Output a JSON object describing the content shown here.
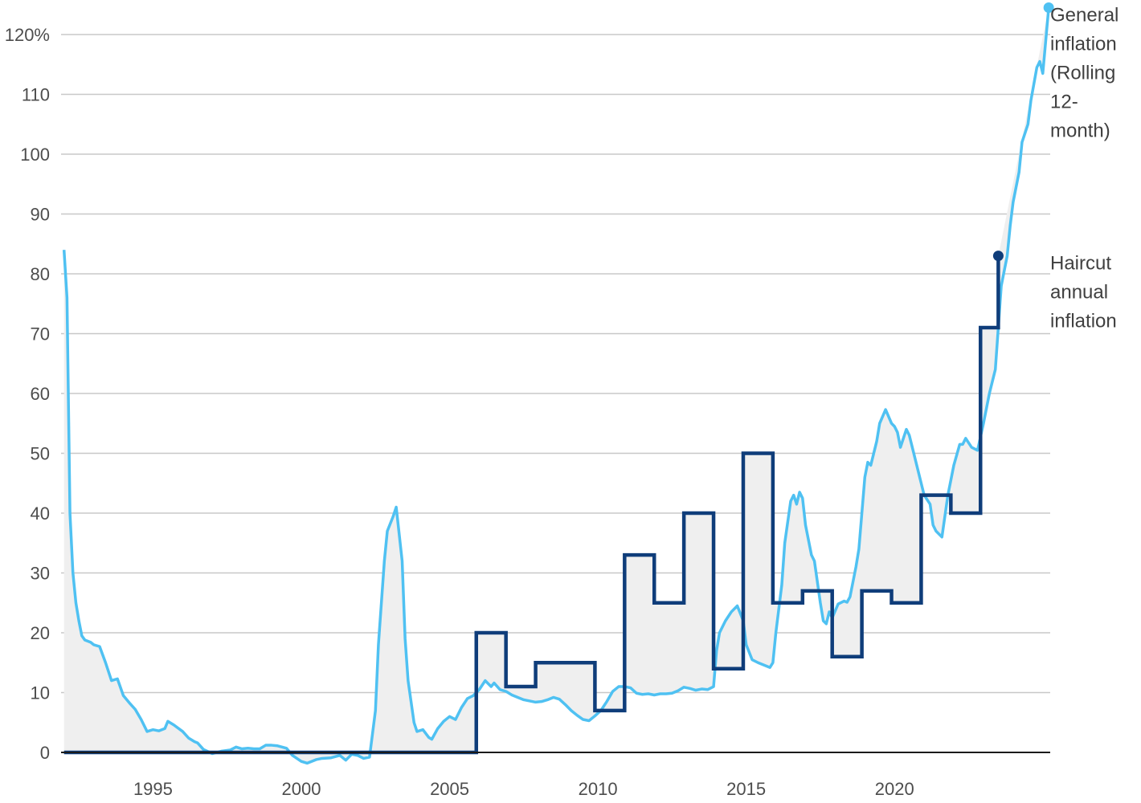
{
  "chart_data": {
    "type": "line",
    "title": "",
    "xlabel": "",
    "ylabel": "",
    "xlim": [
      1991.9,
      2023.8
    ],
    "ylim": [
      0,
      120
    ],
    "grid": true,
    "x_ticks": [
      {
        "value": 1995,
        "label": "1995"
      },
      {
        "value": 2000,
        "label": "2000"
      },
      {
        "value": 2005,
        "label": "2005"
      },
      {
        "value": 2010,
        "label": "2010"
      },
      {
        "value": 2015,
        "label": "2015"
      },
      {
        "value": 2020,
        "label": "2020"
      }
    ],
    "y_ticks": [
      {
        "value": 0,
        "label": "0"
      },
      {
        "value": 10,
        "label": "10"
      },
      {
        "value": 20,
        "label": "20"
      },
      {
        "value": 30,
        "label": "30"
      },
      {
        "value": 40,
        "label": "40"
      },
      {
        "value": 50,
        "label": "50"
      },
      {
        "value": 60,
        "label": "60"
      },
      {
        "value": 70,
        "label": "70"
      },
      {
        "value": 80,
        "label": "80"
      },
      {
        "value": 90,
        "label": "90"
      },
      {
        "value": 100,
        "label": "100"
      },
      {
        "value": 110,
        "label": "110"
      },
      {
        "value": 120,
        "label": "120%"
      }
    ],
    "fill_between_series": true,
    "series": [
      {
        "name": "General inflation (Rolling 12-month)",
        "label_lines": [
          "General",
          "inflation",
          "(Rolling",
          "12-",
          "month)"
        ],
        "color": "#4fc1f2",
        "line_style": "smooth",
        "end_marker": true,
        "points": [
          [
            1992.0,
            84
          ],
          [
            1992.1,
            76
          ],
          [
            1992.2,
            40
          ],
          [
            1992.3,
            30
          ],
          [
            1992.4,
            25
          ],
          [
            1992.5,
            22
          ],
          [
            1992.6,
            19.5
          ],
          [
            1992.7,
            18.8
          ],
          [
            1992.9,
            18.4
          ],
          [
            1993.0,
            18
          ],
          [
            1993.2,
            17.7
          ],
          [
            1993.4,
            15
          ],
          [
            1993.6,
            12
          ],
          [
            1993.8,
            12.3
          ],
          [
            1994.0,
            9.5
          ],
          [
            1994.2,
            8.3
          ],
          [
            1994.4,
            7.2
          ],
          [
            1994.6,
            5.5
          ],
          [
            1994.8,
            3.5
          ],
          [
            1995.0,
            3.8
          ],
          [
            1995.2,
            3.6
          ],
          [
            1995.4,
            4
          ],
          [
            1995.5,
            5.2
          ],
          [
            1995.7,
            4.6
          ],
          [
            1996.0,
            3.5
          ],
          [
            1996.2,
            2.4
          ],
          [
            1996.4,
            1.8
          ],
          [
            1996.5,
            1.6
          ],
          [
            1996.7,
            0.5
          ],
          [
            1997.0,
            -0.2
          ],
          [
            1997.3,
            0.2
          ],
          [
            1997.6,
            0.4
          ],
          [
            1997.8,
            0.9
          ],
          [
            1998.0,
            0.6
          ],
          [
            1998.2,
            0.7
          ],
          [
            1998.4,
            0.6
          ],
          [
            1998.6,
            0.6
          ],
          [
            1998.8,
            1.2
          ],
          [
            1999.0,
            1.2
          ],
          [
            1999.2,
            1.1
          ],
          [
            1999.5,
            0.7
          ],
          [
            1999.7,
            -0.5
          ],
          [
            2000.0,
            -1.5
          ],
          [
            2000.2,
            -1.8
          ],
          [
            2000.5,
            -1.2
          ],
          [
            2000.7,
            -1
          ],
          [
            2001.0,
            -0.9
          ],
          [
            2001.3,
            -0.5
          ],
          [
            2001.5,
            -1.3
          ],
          [
            2001.7,
            -0.3
          ],
          [
            2001.9,
            -0.5
          ],
          [
            2002.1,
            -1
          ],
          [
            2002.3,
            -0.8
          ],
          [
            2002.5,
            7
          ],
          [
            2002.6,
            18
          ],
          [
            2002.8,
            32
          ],
          [
            2002.9,
            37
          ],
          [
            2003.1,
            39.5
          ],
          [
            2003.2,
            41
          ],
          [
            2003.4,
            32
          ],
          [
            2003.5,
            19
          ],
          [
            2003.6,
            12
          ],
          [
            2003.8,
            5
          ],
          [
            2003.9,
            3.5
          ],
          [
            2004.1,
            3.8
          ],
          [
            2004.3,
            2.5
          ],
          [
            2004.4,
            2.2
          ],
          [
            2004.6,
            4
          ],
          [
            2004.8,
            5.2
          ],
          [
            2005.0,
            6
          ],
          [
            2005.2,
            5.5
          ],
          [
            2005.4,
            7.5
          ],
          [
            2005.6,
            9
          ],
          [
            2005.8,
            9.5
          ],
          [
            2006.0,
            10.5
          ],
          [
            2006.2,
            12
          ],
          [
            2006.4,
            11
          ],
          [
            2006.5,
            11.6
          ],
          [
            2006.7,
            10.5
          ],
          [
            2006.9,
            10.2
          ],
          [
            2007.1,
            9.6
          ],
          [
            2007.3,
            9.2
          ],
          [
            2007.5,
            8.8
          ],
          [
            2007.7,
            8.6
          ],
          [
            2007.9,
            8.4
          ],
          [
            2008.1,
            8.5
          ],
          [
            2008.3,
            8.8
          ],
          [
            2008.5,
            9.2
          ],
          [
            2008.7,
            8.9
          ],
          [
            2008.9,
            8
          ],
          [
            2009.1,
            7
          ],
          [
            2009.3,
            6.2
          ],
          [
            2009.5,
            5.5
          ],
          [
            2009.7,
            5.3
          ],
          [
            2009.9,
            6.1
          ],
          [
            2010.1,
            7
          ],
          [
            2010.3,
            8.5
          ],
          [
            2010.5,
            10.2
          ],
          [
            2010.7,
            11
          ],
          [
            2010.9,
            11
          ],
          [
            2011.1,
            10.8
          ],
          [
            2011.3,
            9.9
          ],
          [
            2011.5,
            9.7
          ],
          [
            2011.7,
            9.8
          ],
          [
            2011.9,
            9.6
          ],
          [
            2012.1,
            9.8
          ],
          [
            2012.3,
            9.8
          ],
          [
            2012.5,
            9.9
          ],
          [
            2012.7,
            10.3
          ],
          [
            2012.9,
            10.9
          ],
          [
            2013.1,
            10.7
          ],
          [
            2013.3,
            10.4
          ],
          [
            2013.5,
            10.6
          ],
          [
            2013.7,
            10.5
          ],
          [
            2013.9,
            11
          ],
          [
            2014.0,
            17
          ],
          [
            2014.1,
            20
          ],
          [
            2014.3,
            22
          ],
          [
            2014.5,
            23.5
          ],
          [
            2014.7,
            24.5
          ],
          [
            2014.9,
            22
          ],
          [
            2015.0,
            18
          ],
          [
            2015.2,
            15.5
          ],
          [
            2015.4,
            15
          ],
          [
            2015.6,
            14.6
          ],
          [
            2015.8,
            14.2
          ],
          [
            2015.9,
            15
          ],
          [
            2016.0,
            20
          ],
          [
            2016.2,
            28
          ],
          [
            2016.3,
            35
          ],
          [
            2016.5,
            42
          ],
          [
            2016.6,
            43
          ],
          [
            2016.7,
            41.5
          ],
          [
            2016.8,
            43.5
          ],
          [
            2016.9,
            42.5
          ],
          [
            2017.0,
            38
          ],
          [
            2017.2,
            33
          ],
          [
            2017.3,
            32
          ],
          [
            2017.5,
            25
          ],
          [
            2017.6,
            22
          ],
          [
            2017.7,
            21.5
          ],
          [
            2017.8,
            23.5
          ],
          [
            2017.9,
            22.5
          ],
          [
            2018.1,
            24.8
          ],
          [
            2018.3,
            25.3
          ],
          [
            2018.4,
            25.1
          ],
          [
            2018.5,
            26
          ],
          [
            2018.7,
            31
          ],
          [
            2018.8,
            34
          ],
          [
            2018.9,
            40
          ],
          [
            2019.0,
            46
          ],
          [
            2019.1,
            48.5
          ],
          [
            2019.2,
            48
          ],
          [
            2019.4,
            52
          ],
          [
            2019.5,
            55
          ],
          [
            2019.7,
            57.3
          ],
          [
            2019.9,
            55
          ],
          [
            2020.0,
            54.5
          ],
          [
            2020.1,
            53.5
          ],
          [
            2020.2,
            51
          ],
          [
            2020.4,
            54
          ],
          [
            2020.5,
            53
          ],
          [
            2020.6,
            51
          ],
          [
            2020.8,
            47
          ],
          [
            2020.9,
            45
          ],
          [
            2021.0,
            43
          ],
          [
            2021.2,
            41.5
          ],
          [
            2021.3,
            38
          ],
          [
            2021.4,
            37
          ],
          [
            2021.6,
            36
          ],
          [
            2021.8,
            43
          ],
          [
            2022.0,
            48
          ],
          [
            2022.2,
            51.5
          ],
          [
            2022.3,
            51.5
          ],
          [
            2022.4,
            52.5
          ],
          [
            2022.6,
            51
          ],
          [
            2022.8,
            50.5
          ],
          [
            2023.0,
            55
          ],
          [
            2023.2,
            60
          ],
          [
            2023.4,
            64
          ],
          [
            2023.6,
            78
          ],
          [
            2023.8,
            83
          ],
          [
            2023.9,
            88
          ],
          [
            2024.0,
            92
          ],
          [
            2024.2,
            97
          ],
          [
            2024.3,
            102
          ],
          [
            2024.5,
            105
          ],
          [
            2024.6,
            109
          ],
          [
            2024.8,
            114.5
          ],
          [
            2024.9,
            115.5
          ],
          [
            2025.0,
            113.5
          ],
          [
            2025.2,
            124.5
          ]
        ]
      },
      {
        "name": "Haircut annual inflation",
        "label_lines": [
          "Haircut",
          "annual",
          "inflation"
        ],
        "color": "#0f3d7a",
        "line_style": "step",
        "end_marker": true,
        "points": [
          [
            1992.0,
            0
          ],
          [
            2005.9,
            0
          ],
          [
            2005.9,
            20
          ],
          [
            2006.9,
            20
          ],
          [
            2006.9,
            11
          ],
          [
            2007.9,
            11
          ],
          [
            2007.9,
            15
          ],
          [
            2009.9,
            15
          ],
          [
            2009.9,
            7
          ],
          [
            2010.9,
            7
          ],
          [
            2010.9,
            33
          ],
          [
            2011.9,
            33
          ],
          [
            2011.9,
            25
          ],
          [
            2012.9,
            25
          ],
          [
            2012.9,
            40
          ],
          [
            2013.9,
            40
          ],
          [
            2013.9,
            14
          ],
          [
            2014.9,
            14
          ],
          [
            2014.9,
            50
          ],
          [
            2015.9,
            50
          ],
          [
            2015.9,
            25
          ],
          [
            2016.9,
            25
          ],
          [
            2016.9,
            27
          ],
          [
            2017.9,
            27
          ],
          [
            2017.9,
            16
          ],
          [
            2018.9,
            16
          ],
          [
            2018.9,
            27
          ],
          [
            2019.9,
            27
          ],
          [
            2019.9,
            25
          ],
          [
            2020.9,
            25
          ],
          [
            2020.9,
            43
          ],
          [
            2021.9,
            43
          ],
          [
            2021.9,
            40
          ],
          [
            2022.9,
            40
          ],
          [
            2022.9,
            71
          ],
          [
            2023.5,
            71
          ],
          [
            2023.5,
            83
          ]
        ]
      }
    ]
  }
}
